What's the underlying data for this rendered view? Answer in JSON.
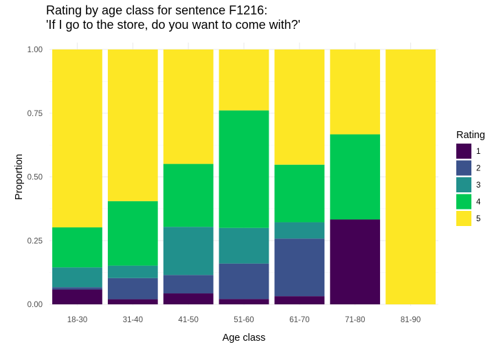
{
  "chart_data": {
    "type": "bar",
    "stacked": true,
    "title_lines": [
      "Rating by age class for sentence F1216:",
      "'If I go to the store, do you want to come with?'"
    ],
    "xlabel": "Age class",
    "ylabel": "Proportion",
    "ylim": [
      0,
      1
    ],
    "yticks": [
      "0.00",
      "0.25",
      "0.50",
      "0.75",
      "1.00"
    ],
    "categories": [
      "18-30",
      "31-40",
      "41-50",
      "51-60",
      "61-70",
      "71-80",
      "81-90"
    ],
    "legend": {
      "title": "Rating",
      "placement": "right"
    },
    "grid": true,
    "series": [
      {
        "name": "1",
        "color": "#440154",
        "values": [
          0.058,
          0.02,
          0.043,
          0.021,
          0.032,
          0.333,
          0.0
        ]
      },
      {
        "name": "2",
        "color": "#3b528b",
        "values": [
          0.009,
          0.083,
          0.072,
          0.139,
          0.226,
          0.0,
          0.0
        ]
      },
      {
        "name": "3",
        "color": "#21908c",
        "values": [
          0.078,
          0.049,
          0.189,
          0.14,
          0.064,
          0.0,
          0.0
        ]
      },
      {
        "name": "4",
        "color": "#00c853",
        "values": [
          0.157,
          0.253,
          0.247,
          0.461,
          0.226,
          0.334,
          0.0
        ]
      },
      {
        "name": "5",
        "color": "#fde725",
        "values": [
          0.698,
          0.595,
          0.449,
          0.239,
          0.452,
          0.333,
          1.0
        ]
      }
    ]
  }
}
